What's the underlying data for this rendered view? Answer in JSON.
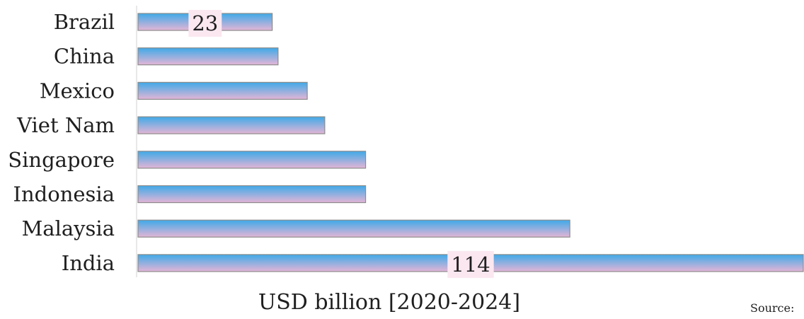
{
  "chart_data": {
    "type": "bar",
    "orientation": "horizontal",
    "categories": [
      "Brazil",
      "China",
      "Mexico",
      "Viet Nam",
      "Singapore",
      "Indonesia",
      "Malaysia",
      "India"
    ],
    "values": [
      23,
      24,
      29,
      32,
      39,
      39,
      74,
      114
    ],
    "data_labels": [
      {
        "category": "Brazil",
        "text": "23"
      },
      {
        "category": "India",
        "text": "114"
      }
    ],
    "xlabel": "USD billion [2020-2024]",
    "ylabel": "",
    "xlim": [
      0,
      114
    ],
    "grid": false,
    "legend": "none",
    "bar_gradient": [
      "#3fa9e8",
      "#e4b5d6"
    ],
    "bar_border": "#8c8c8c",
    "label_box_color": "#fbe7f0"
  },
  "source_label": "Source:"
}
